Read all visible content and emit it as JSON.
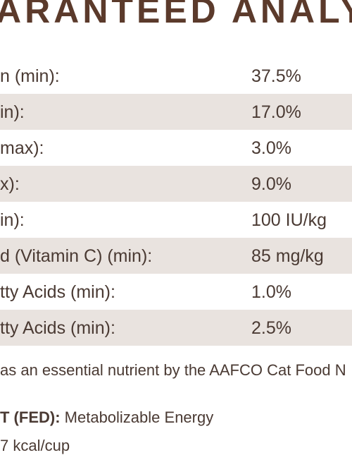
{
  "title": "ARANTEED ANALY",
  "rows": [
    [
      "n (min):",
      "37.5%"
    ],
    [
      "in):",
      "17.0%"
    ],
    [
      "max):",
      "3.0%"
    ],
    [
      "x):",
      "9.0%"
    ],
    [
      "in):",
      "100 IU/kg"
    ],
    [
      "d (Vitamin C) (min):",
      "85 mg/kg"
    ],
    [
      "tty Acids (min):",
      "1.0%"
    ],
    [
      "tty Acids (min):",
      "2.5%"
    ]
  ],
  "footnote": "as an essential nutrient by the AAFCO Cat Food N",
  "energy": {
    "label": "T (FED):",
    "text": "Metabolizable Energy",
    "value": "7 kcal/cup"
  }
}
